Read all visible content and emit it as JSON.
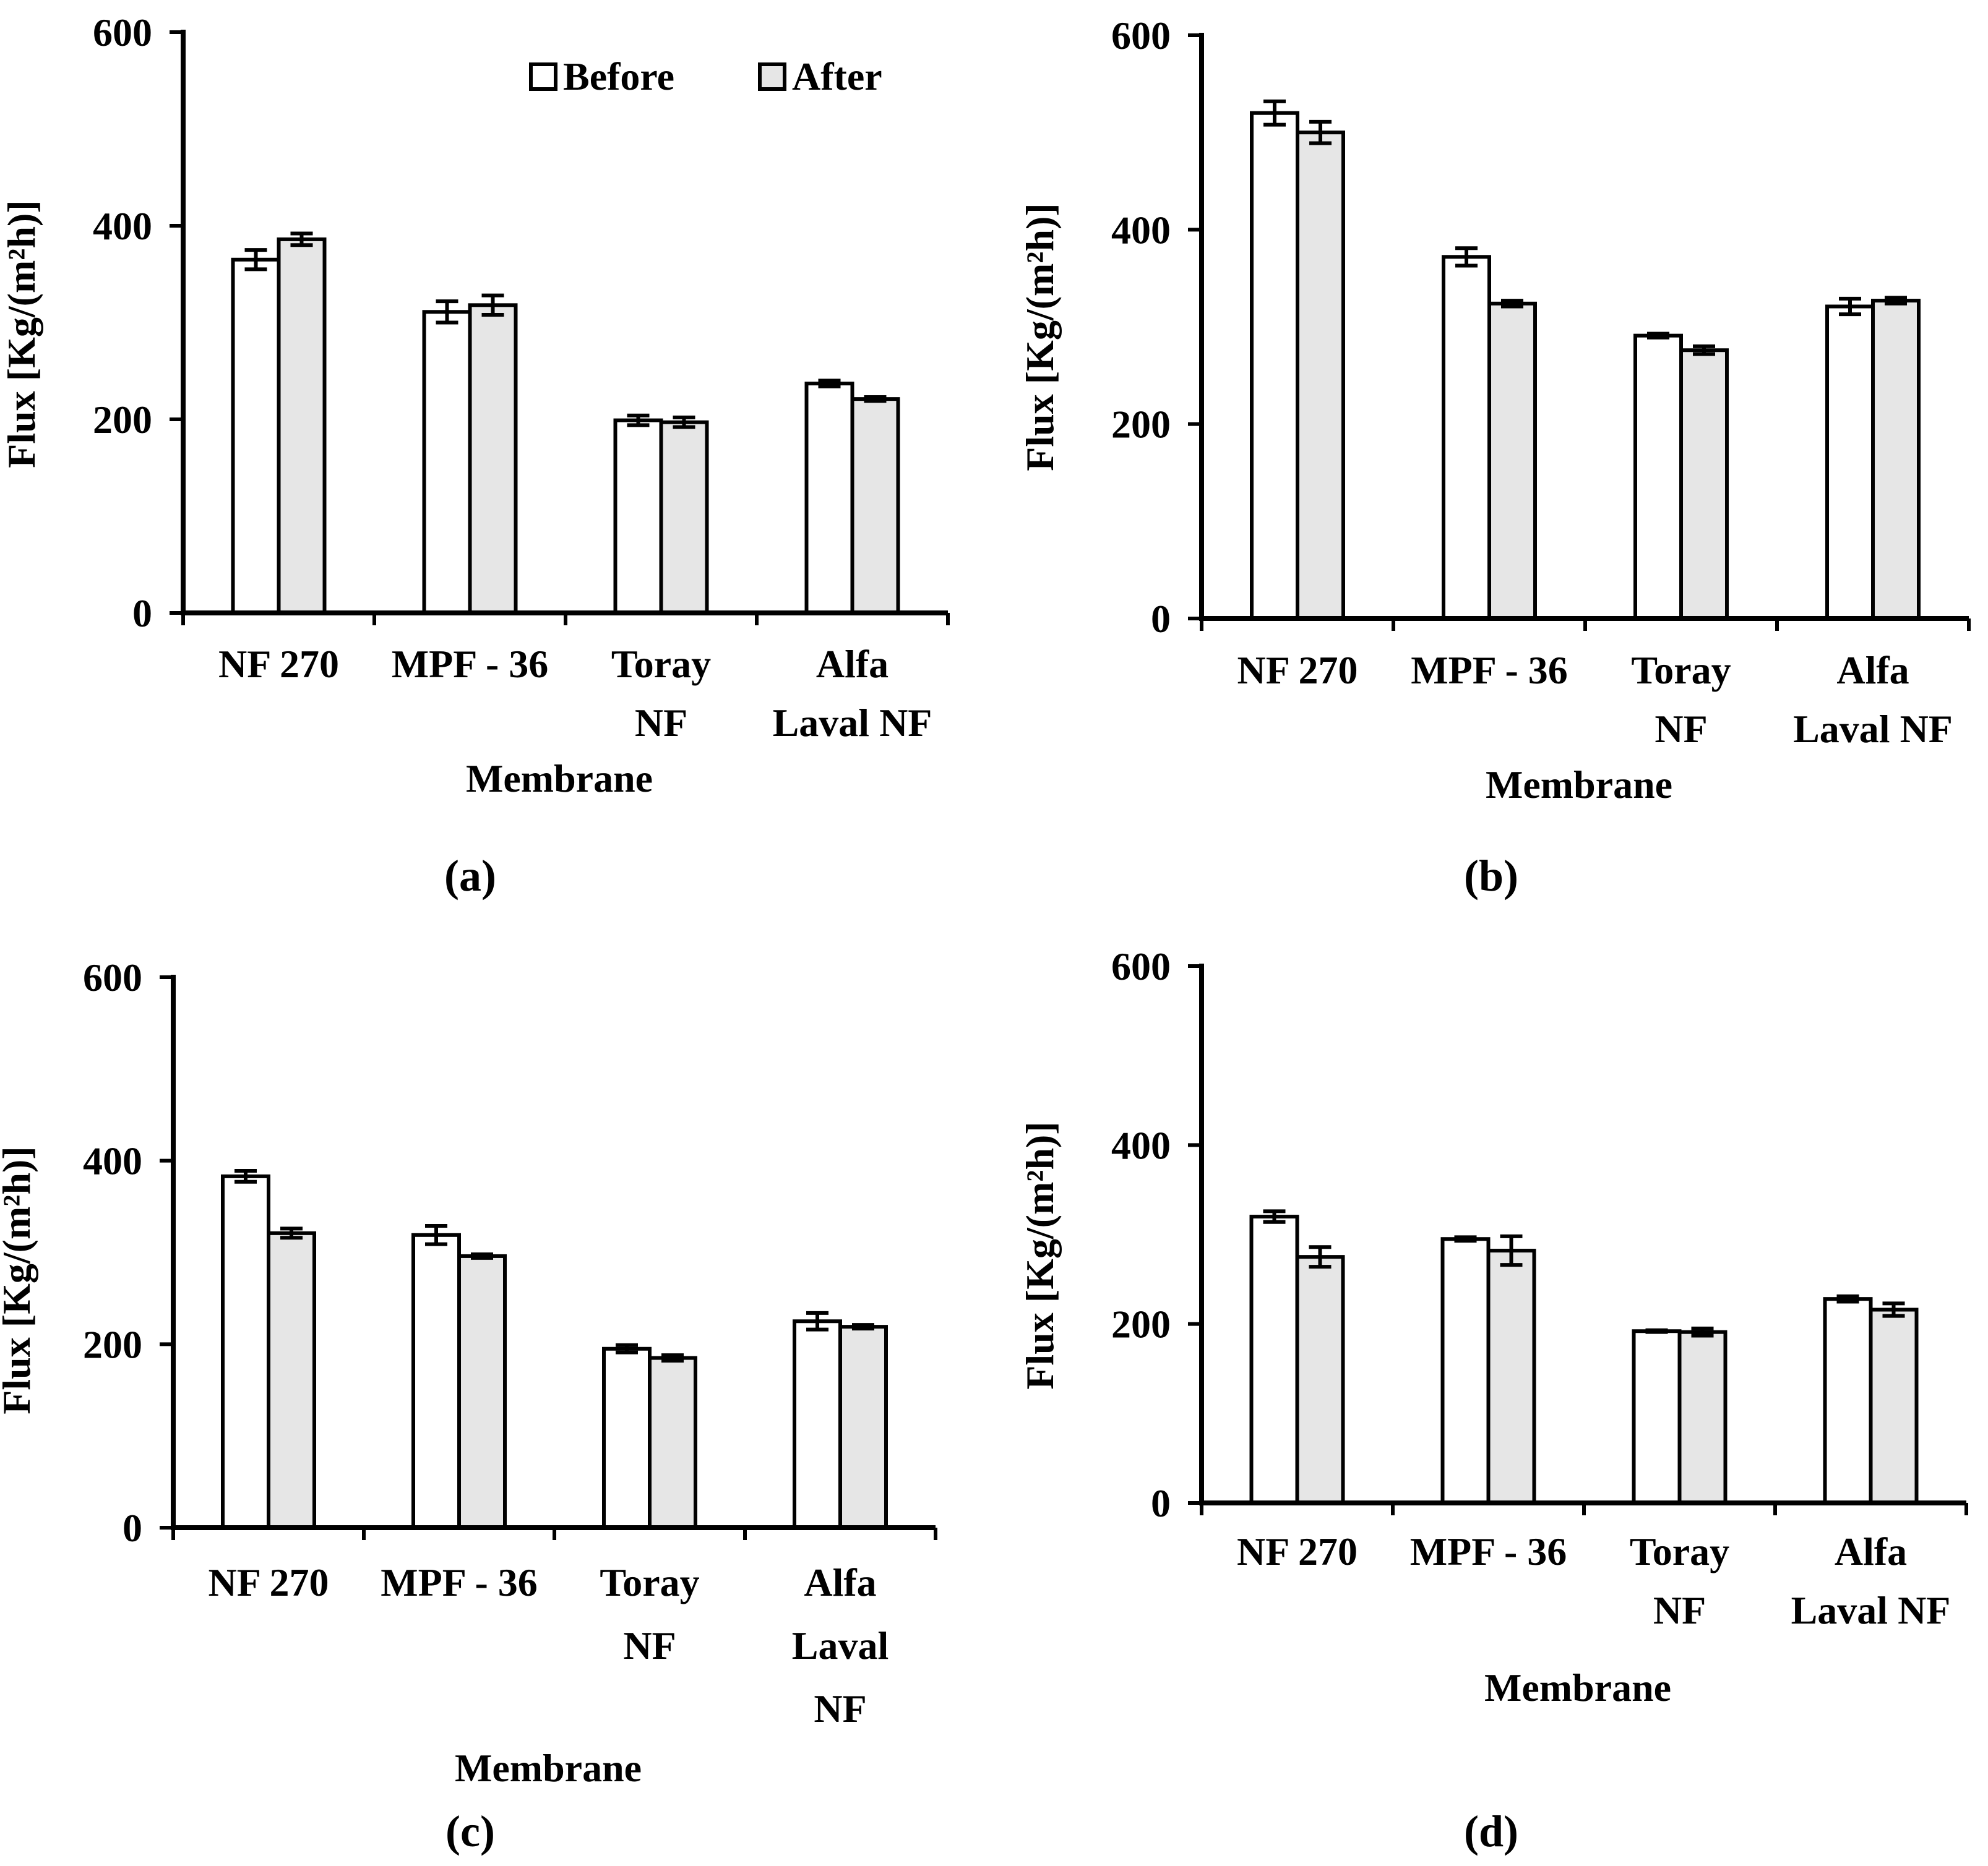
{
  "figure": {
    "legend": {
      "before_label": "Before",
      "after_label": "After"
    },
    "colors": {
      "before": "#ffffff",
      "after": "#e6e6e6",
      "stroke": "#000000"
    }
  },
  "chart_data": [
    {
      "type": "bar",
      "panel_label": "a",
      "caption": "(a)",
      "ylabel": "Flux [Kg/(m²h)]",
      "xlabel": "Membrane",
      "ylim": [
        0,
        600
      ],
      "yticks": [
        "0",
        "200",
        "400",
        "600"
      ],
      "categories": [
        [
          "NF 270"
        ],
        [
          "MPF - 36"
        ],
        [
          "Toray",
          "NF"
        ],
        [
          "Alfa",
          "Laval NF"
        ]
      ],
      "legend": "top-right",
      "series": [
        {
          "name": "Before",
          "values": [
            365,
            311,
            199,
            237
          ],
          "errors": [
            10,
            11,
            5,
            3
          ]
        },
        {
          "name": "After",
          "values": [
            386,
            318,
            197,
            221
          ],
          "errors": [
            6,
            10,
            5,
            2
          ]
        }
      ]
    },
    {
      "type": "bar",
      "panel_label": "b",
      "caption": "(b)",
      "ylabel": "Flux [Kg/(m²h)]",
      "xlabel": "Membrane",
      "ylim": [
        0,
        600
      ],
      "yticks": [
        "0",
        "200",
        "400",
        "600"
      ],
      "categories": [
        [
          "NF 270"
        ],
        [
          "MPF - 36"
        ],
        [
          "Toray",
          "NF"
        ],
        [
          "Alfa",
          "Laval NF"
        ]
      ],
      "series": [
        {
          "name": "Before",
          "values": [
            520,
            372,
            291,
            321
          ],
          "errors": [
            12,
            9,
            2,
            8
          ]
        },
        {
          "name": "After",
          "values": [
            500,
            324,
            276,
            327
          ],
          "errors": [
            11,
            3,
            4,
            3
          ]
        }
      ]
    },
    {
      "type": "bar",
      "panel_label": "c",
      "caption": "(c)",
      "ylabel": "Flux [Kg/(m²h)]",
      "xlabel": "Membrane",
      "ylim": [
        0,
        600
      ],
      "yticks": [
        "0",
        "200",
        "400",
        "600"
      ],
      "categories": [
        [
          "NF 270"
        ],
        [
          "MPF - 36"
        ],
        [
          "Toray",
          "NF"
        ],
        [
          "Alfa",
          "Laval",
          "NF"
        ]
      ],
      "series": [
        {
          "name": "Before",
          "values": [
            383,
            319,
            195,
            225
          ],
          "errors": [
            6,
            10,
            4,
            9
          ]
        },
        {
          "name": "After",
          "values": [
            321,
            296,
            185,
            219
          ],
          "errors": [
            5,
            2,
            3,
            2
          ]
        }
      ]
    },
    {
      "type": "bar",
      "panel_label": "d",
      "caption": "(d)",
      "ylabel": "Flux [Kg/(m²h)]",
      "xlabel": "Membrane",
      "ylim": [
        0,
        600
      ],
      "yticks": [
        "0",
        "200",
        "400",
        "600"
      ],
      "categories": [
        [
          "NF 270"
        ],
        [
          "MPF - 36"
        ],
        [
          "Toray",
          "NF"
        ],
        [
          "Alfa",
          "Laval NF"
        ]
      ],
      "series": [
        {
          "name": "Before",
          "values": [
            320,
            295,
            192,
            228
          ],
          "errors": [
            6,
            2,
            1,
            3
          ]
        },
        {
          "name": "After",
          "values": [
            275,
            282,
            191,
            216
          ],
          "errors": [
            11,
            16,
            4,
            7
          ]
        }
      ]
    }
  ]
}
